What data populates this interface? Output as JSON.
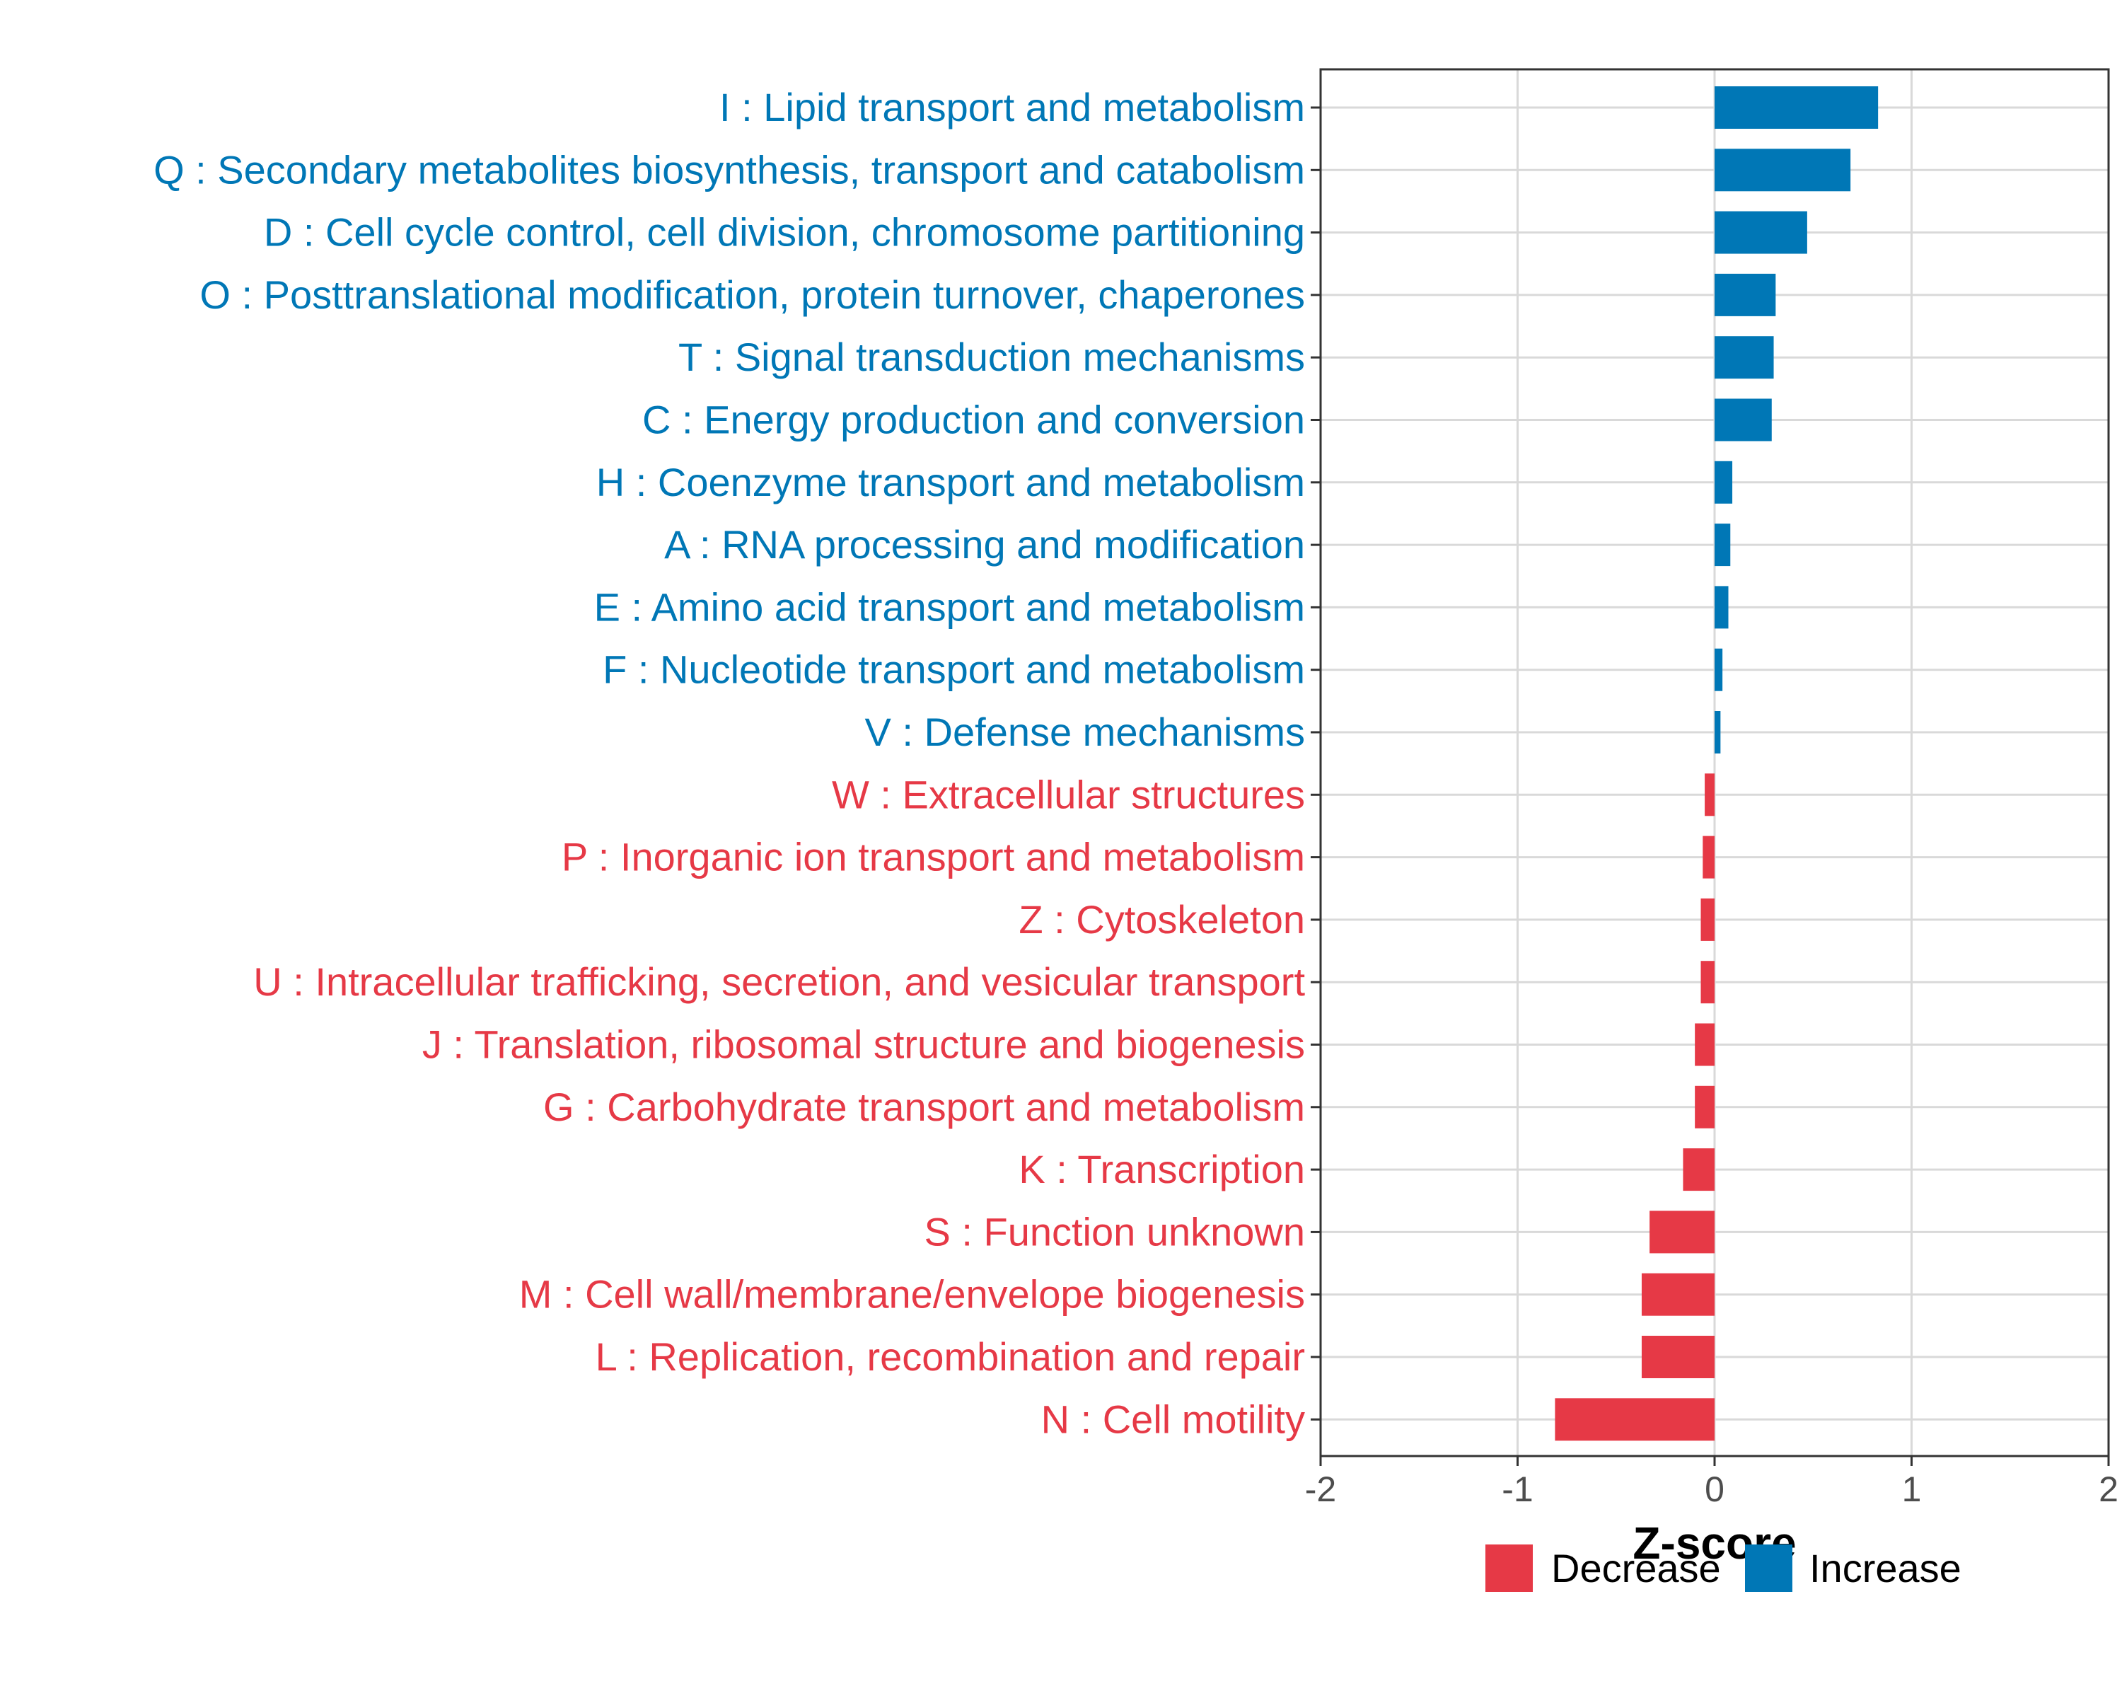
{
  "chart_data": {
    "type": "bar",
    "orientation": "horizontal",
    "xlabel": "Z-score",
    "ylabel": "",
    "xlim": [
      -2,
      2
    ],
    "xticks": [
      -2,
      -1,
      0,
      1,
      2
    ],
    "xtick_labels": [
      "-2",
      "-1",
      "0",
      "1",
      "2"
    ],
    "grid": true,
    "legend_position": "bottom",
    "colors": {
      "Decrease": "#E63946",
      "Increase": "#0077B6"
    },
    "categories": [
      "I : Lipid transport and metabolism",
      "Q : Secondary metabolites biosynthesis, transport and catabolism",
      "D : Cell cycle control, cell division, chromosome partitioning",
      "O : Posttranslational modification, protein turnover, chaperones",
      "T : Signal transduction mechanisms",
      "C : Energy production and conversion",
      "H : Coenzyme transport and metabolism",
      "A : RNA processing and modification",
      "E : Amino acid transport and metabolism",
      "F : Nucleotide transport and metabolism",
      "V : Defense mechanisms",
      "W : Extracellular structures",
      "P : Inorganic ion transport and metabolism",
      "Z : Cytoskeleton",
      "U : Intracellular trafficking, secretion, and vesicular transport",
      "J : Translation, ribosomal structure and biogenesis",
      "G : Carbohydrate transport and metabolism",
      "K : Transcription",
      "S : Function unknown",
      "M : Cell wall/membrane/envelope biogenesis",
      "L : Replication, recombination and repair",
      "N : Cell motility"
    ],
    "values": [
      0.83,
      0.69,
      0.47,
      0.31,
      0.3,
      0.29,
      0.09,
      0.08,
      0.07,
      0.04,
      0.03,
      -0.05,
      -0.06,
      -0.07,
      -0.07,
      -0.1,
      -0.1,
      -0.16,
      -0.33,
      -0.37,
      -0.37,
      -0.81
    ],
    "groups": [
      "Increase",
      "Increase",
      "Increase",
      "Increase",
      "Increase",
      "Increase",
      "Increase",
      "Increase",
      "Increase",
      "Increase",
      "Increase",
      "Decrease",
      "Decrease",
      "Decrease",
      "Decrease",
      "Decrease",
      "Decrease",
      "Decrease",
      "Decrease",
      "Decrease",
      "Decrease",
      "Decrease"
    ],
    "legend": [
      "Decrease",
      "Increase"
    ]
  }
}
